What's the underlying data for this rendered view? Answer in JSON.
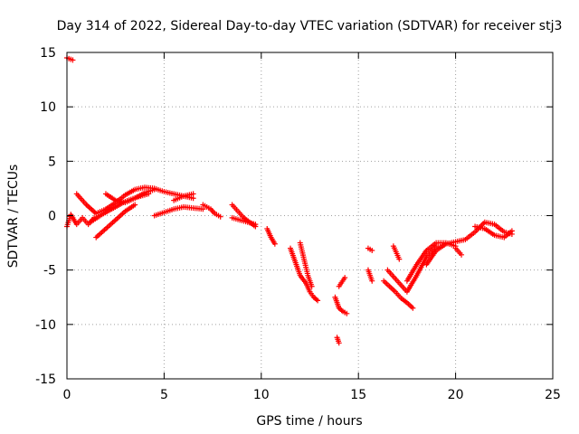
{
  "chart_data": {
    "type": "scatter",
    "title": "Day 314 of 2022, Sidereal Day-to-day VTEC variation (SDTVAR) for receiver stj3",
    "xlabel": "GPS time / hours",
    "ylabel": "SDTVAR / TECUs",
    "xlim": [
      0,
      25
    ],
    "ylim": [
      -15,
      15
    ],
    "xticks": [
      0,
      5,
      10,
      15,
      20,
      25
    ],
    "yticks": [
      -15,
      -10,
      -5,
      0,
      5,
      10,
      15
    ],
    "xtick_labels": [
      "0",
      "5",
      "10",
      "15",
      "20",
      "25"
    ],
    "ytick_labels": [
      "-15",
      "-10",
      "-5",
      "0",
      "5",
      "10",
      "15"
    ],
    "grid": true,
    "marker": "+",
    "color": "#ff0000",
    "series": [
      {
        "name": "stj3",
        "segments": [
          {
            "x": [
              0.0,
              0.3
            ],
            "y": [
              14.5,
              14.3
            ]
          },
          {
            "x": [
              0.0,
              0.2,
              0.5,
              0.8,
              1.1,
              1.4
            ],
            "y": [
              -1.0,
              0.1,
              -0.8,
              -0.2,
              -0.8,
              -0.2
            ]
          },
          {
            "x": [
              0.5,
              1.0,
              1.5,
              2.0,
              2.5,
              3.0,
              3.5,
              4.0,
              4.5,
              5.0,
              5.5,
              6.0,
              6.5
            ],
            "y": [
              2.0,
              1.0,
              0.2,
              0.6,
              1.2,
              1.9,
              2.4,
              2.6,
              2.5,
              2.2,
              2.0,
              1.8,
              1.6
            ]
          },
          {
            "x": [
              1.5,
              2.0,
              2.5,
              3.0,
              3.5
            ],
            "y": [
              -2.0,
              -1.2,
              -0.4,
              0.4,
              1.0
            ]
          },
          {
            "x": [
              1.2,
              1.8,
              2.4,
              3.0,
              3.6,
              4.2
            ],
            "y": [
              -0.6,
              0.1,
              0.7,
              1.3,
              1.7,
              2.0
            ]
          },
          {
            "x": [
              2.0,
              2.5,
              3.0,
              3.5,
              4.0,
              4.5
            ],
            "y": [
              2.0,
              1.4,
              1.2,
              1.6,
              2.1,
              2.4
            ]
          },
          {
            "x": [
              4.5,
              5.0,
              5.5,
              6.0,
              6.5,
              7.0
            ],
            "y": [
              0.0,
              0.3,
              0.6,
              0.8,
              0.7,
              0.6
            ]
          },
          {
            "x": [
              5.5,
              6.0,
              6.5
            ],
            "y": [
              1.4,
              1.8,
              2.0
            ]
          },
          {
            "x": [
              7.0,
              7.4,
              7.6,
              7.9
            ],
            "y": [
              1.0,
              0.6,
              0.2,
              -0.1
            ]
          },
          {
            "x": [
              8.5,
              8.8,
              9.1,
              9.4,
              9.7
            ],
            "y": [
              1.0,
              0.4,
              -0.2,
              -0.6,
              -1.0
            ]
          },
          {
            "x": [
              8.5,
              8.9,
              9.3,
              9.7
            ],
            "y": [
              -0.2,
              -0.4,
              -0.6,
              -0.8
            ]
          },
          {
            "x": [
              10.3,
              10.5,
              10.7
            ],
            "y": [
              -1.2,
              -2.0,
              -2.6
            ]
          },
          {
            "x": [
              11.5,
              11.8,
              12.0,
              12.3,
              12.5,
              12.7,
              12.9
            ],
            "y": [
              -3.0,
              -4.5,
              -5.5,
              -6.2,
              -7.0,
              -7.5,
              -7.8
            ]
          },
          {
            "x": [
              12.0,
              12.2,
              12.4,
              12.6
            ],
            "y": [
              -2.5,
              -4.0,
              -5.5,
              -6.5
            ]
          },
          {
            "x": [
              13.8,
              14.0,
              14.2,
              14.4
            ],
            "y": [
              -7.5,
              -8.5,
              -8.8,
              -9.0
            ]
          },
          {
            "x": [
              13.9,
              14.0
            ],
            "y": [
              -11.2,
              -11.7
            ]
          },
          {
            "x": [
              14.0,
              14.3
            ],
            "y": [
              -6.5,
              -5.7
            ]
          },
          {
            "x": [
              15.5,
              15.7
            ],
            "y": [
              -3.0,
              -3.2
            ]
          },
          {
            "x": [
              15.5,
              15.7
            ],
            "y": [
              -5.0,
              -6.0
            ]
          },
          {
            "x": [
              16.3,
              16.6,
              16.9,
              17.2,
              17.5,
              17.8
            ],
            "y": [
              -6.0,
              -6.5,
              -7.0,
              -7.6,
              -8.0,
              -8.5
            ]
          },
          {
            "x": [
              16.5,
              17.0,
              17.5,
              18.0,
              18.5,
              19.0
            ],
            "y": [
              -5.0,
              -6.0,
              -7.0,
              -5.5,
              -3.8,
              -2.8
            ]
          },
          {
            "x": [
              17.5,
              18.0,
              18.5,
              19.0,
              19.5,
              20.0
            ],
            "y": [
              -6.0,
              -4.5,
              -3.2,
              -2.5,
              -2.5,
              -2.8
            ]
          },
          {
            "x": [
              16.8,
              17.1
            ],
            "y": [
              -2.8,
              -4.0
            ]
          },
          {
            "x": [
              18.5,
              19.0,
              19.5,
              20.0,
              20.5,
              21.0,
              21.5,
              22.0,
              22.5,
              22.9
            ],
            "y": [
              -4.5,
              -3.2,
              -2.6,
              -2.4,
              -2.2,
              -1.5,
              -0.6,
              -0.8,
              -1.5,
              -1.7
            ]
          },
          {
            "x": [
              20.0,
              20.3
            ],
            "y": [
              -3.0,
              -3.6
            ]
          },
          {
            "x": [
              21.0,
              21.5,
              22.0,
              22.5,
              22.9
            ],
            "y": [
              -1.0,
              -1.2,
              -1.8,
              -2.0,
              -1.4
            ]
          }
        ]
      }
    ]
  }
}
